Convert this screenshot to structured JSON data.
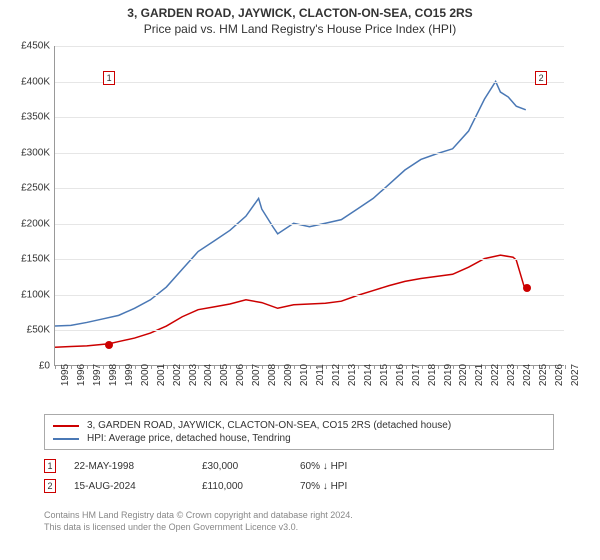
{
  "title_line1": "3, GARDEN ROAD, JAYWICK, CLACTON-ON-SEA, CO15 2RS",
  "title_line2": "Price paid vs. HM Land Registry's House Price Index (HPI)",
  "chart": {
    "type": "line",
    "background_color": "#ffffff",
    "grid_color": "#e6e6e6",
    "axis_color": "#999999",
    "text_color": "#333333",
    "x": {
      "start": 1995,
      "end": 2027,
      "step": 1
    },
    "y": {
      "min": 0,
      "max": 450000,
      "step": 50000,
      "prefix": "£",
      "suffix": "K",
      "divisor": 1000
    },
    "series": [
      {
        "name": "3, GARDEN ROAD, JAYWICK, CLACTON-ON-SEA, CO15 2RS (detached house)",
        "color": "#cc0000",
        "width": 1.5,
        "points": [
          [
            1995,
            25000
          ],
          [
            1996,
            26000
          ],
          [
            1997,
            27000
          ],
          [
            1998.4,
            30000
          ],
          [
            1999,
            33000
          ],
          [
            2000,
            38000
          ],
          [
            2001,
            45000
          ],
          [
            2002,
            55000
          ],
          [
            2003,
            68000
          ],
          [
            2004,
            78000
          ],
          [
            2005,
            82000
          ],
          [
            2006,
            86000
          ],
          [
            2007,
            92000
          ],
          [
            2008,
            88000
          ],
          [
            2009,
            80000
          ],
          [
            2010,
            85000
          ],
          [
            2011,
            86000
          ],
          [
            2012,
            87000
          ],
          [
            2013,
            90000
          ],
          [
            2014,
            98000
          ],
          [
            2015,
            105000
          ],
          [
            2016,
            112000
          ],
          [
            2017,
            118000
          ],
          [
            2018,
            122000
          ],
          [
            2019,
            125000
          ],
          [
            2020,
            128000
          ],
          [
            2021,
            138000
          ],
          [
            2022,
            150000
          ],
          [
            2023,
            155000
          ],
          [
            2023.8,
            152000
          ],
          [
            2024,
            148000
          ],
          [
            2024.5,
            110000
          ],
          [
            2024.62,
            110000
          ]
        ]
      },
      {
        "name": "HPI: Average price, detached house, Tendring",
        "color": "#4a78b5",
        "width": 1.5,
        "points": [
          [
            1995,
            55000
          ],
          [
            1996,
            56000
          ],
          [
            1997,
            60000
          ],
          [
            1998,
            65000
          ],
          [
            1999,
            70000
          ],
          [
            2000,
            80000
          ],
          [
            2001,
            92000
          ],
          [
            2002,
            110000
          ],
          [
            2003,
            135000
          ],
          [
            2004,
            160000
          ],
          [
            2005,
            175000
          ],
          [
            2006,
            190000
          ],
          [
            2007,
            210000
          ],
          [
            2007.8,
            235000
          ],
          [
            2008,
            220000
          ],
          [
            2008.7,
            195000
          ],
          [
            2009,
            185000
          ],
          [
            2010,
            200000
          ],
          [
            2011,
            195000
          ],
          [
            2012,
            200000
          ],
          [
            2013,
            205000
          ],
          [
            2014,
            220000
          ],
          [
            2015,
            235000
          ],
          [
            2016,
            255000
          ],
          [
            2017,
            275000
          ],
          [
            2018,
            290000
          ],
          [
            2019,
            298000
          ],
          [
            2020,
            305000
          ],
          [
            2021,
            330000
          ],
          [
            2022,
            375000
          ],
          [
            2022.7,
            400000
          ],
          [
            2023,
            385000
          ],
          [
            2023.5,
            378000
          ],
          [
            2024,
            365000
          ],
          [
            2024.6,
            360000
          ]
        ]
      }
    ],
    "markers": [
      {
        "n": "1",
        "x": 1998.4,
        "y": 30000,
        "color": "#cc0000",
        "box_y": 405000
      },
      {
        "n": "2",
        "x": 2024.62,
        "y": 110000,
        "color": "#cc0000",
        "box_y": 405000,
        "box_x": 2025.5
      }
    ]
  },
  "legend": {
    "items": [
      {
        "color": "#cc0000",
        "label": "3, GARDEN ROAD, JAYWICK, CLACTON-ON-SEA, CO15 2RS (detached house)"
      },
      {
        "color": "#4a78b5",
        "label": "HPI: Average price, detached house, Tendring"
      }
    ]
  },
  "transactions": [
    {
      "n": "1",
      "color": "#cc0000",
      "date": "22-MAY-1998",
      "price": "£30,000",
      "pct": "60%  ↓  HPI"
    },
    {
      "n": "2",
      "color": "#cc0000",
      "date": "15-AUG-2024",
      "price": "£110,000",
      "pct": "70%  ↓  HPI"
    }
  ],
  "footer_line1": "Contains HM Land Registry data © Crown copyright and database right 2024.",
  "footer_line2": "This data is licensed under the Open Government Licence v3.0."
}
